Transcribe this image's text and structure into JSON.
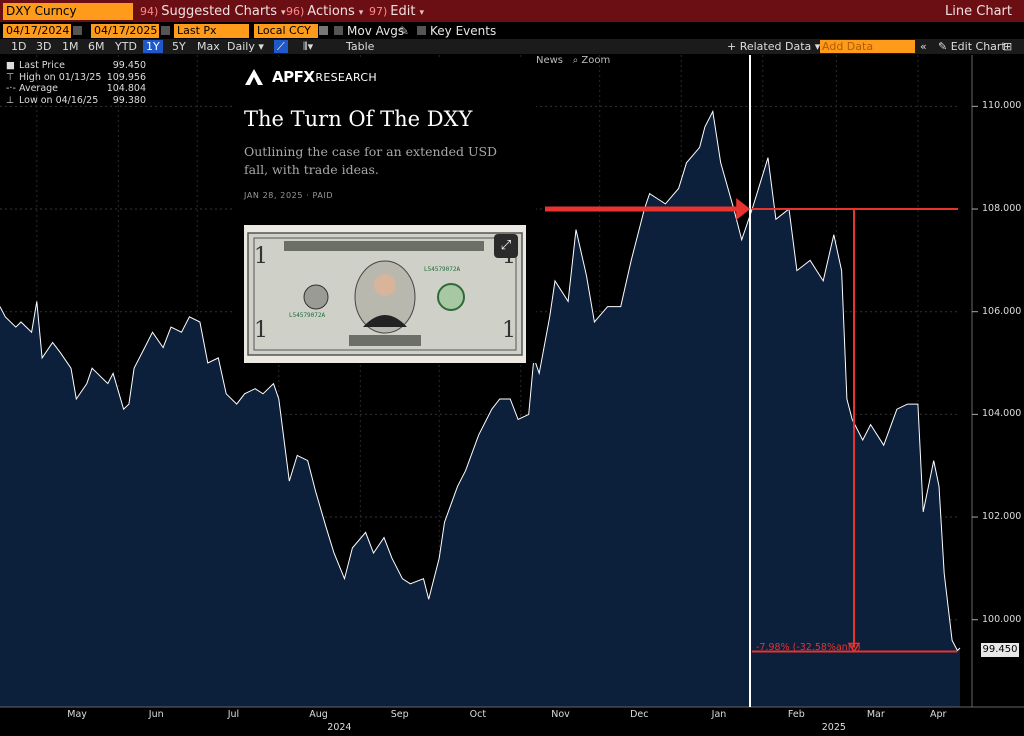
{
  "toolbar": {
    "ticker": "DXY Curncy",
    "menu": [
      {
        "num": "94)",
        "label": "Suggested Charts"
      },
      {
        "num": "96)",
        "label": "Actions"
      },
      {
        "num": "97)",
        "label": "Edit"
      }
    ],
    "title": "Line Chart"
  },
  "settings": {
    "date_from": "04/17/2024",
    "date_to": "04/17/2025",
    "field": "Last Px",
    "currency": "Local CCY",
    "mov_avgs": "Mov Avgs",
    "key_events": "Key Events"
  },
  "ranges": [
    "1D",
    "3D",
    "1M",
    "6M",
    "YTD",
    "1Y",
    "5Y",
    "Max"
  ],
  "selected_range": "1Y",
  "period": "Daily",
  "table_label": "Table",
  "related_data": "+ Related Data",
  "add_data": "Add Data",
  "edit_chart": "Edit Chart",
  "legend": [
    {
      "label": "Last Price",
      "value": "99.450"
    },
    {
      "label": "High on 01/13/25",
      "value": "109.956"
    },
    {
      "label": "Average",
      "value": "104.804"
    },
    {
      "label": "Low on 04/16/25",
      "value": "99.380"
    }
  ],
  "article": {
    "logo": "APFX",
    "logo_sub": "RESEARCH",
    "title": "The Turn Of The DXY",
    "subtitle": "Outlining the case for an extended USD fall, with trade ideas.",
    "meta": "JAN 28, 2025 · PAID"
  },
  "news_label": "News",
  "zoom_label": "Zoom",
  "annotation": "-7.98% (-32.58%ann.)",
  "colors": {
    "line": "#ffffff",
    "fill": "#0c1f3b",
    "annotation": "#e8332e",
    "accent": "#ff9b1a",
    "menubar": "#6b0f14"
  },
  "chart_data": {
    "type": "area",
    "title": "",
    "xlabel": "",
    "ylabel": "",
    "ylim": [
      98.3,
      111.0
    ],
    "yticks": [
      "100.000",
      "102.000",
      "104.000",
      "106.000",
      "108.000",
      "110.000"
    ],
    "month_labels": [
      "May",
      "Jun",
      "Jul",
      "Aug",
      "Sep",
      "Oct",
      "Nov",
      "Dec",
      "Jan",
      "Feb",
      "Mar",
      "Apr"
    ],
    "year_labels": [
      "2024",
      "2025"
    ],
    "last_value": "99.450",
    "x": [
      "2024-04-17",
      "2024-04-19",
      "2024-04-23",
      "2024-04-25",
      "2024-04-29",
      "2024-05-01",
      "2024-05-03",
      "2024-05-07",
      "2024-05-10",
      "2024-05-14",
      "2024-05-16",
      "2024-05-20",
      "2024-05-22",
      "2024-05-24",
      "2024-05-28",
      "2024-05-30",
      "2024-06-03",
      "2024-06-05",
      "2024-06-07",
      "2024-06-11",
      "2024-06-14",
      "2024-06-18",
      "2024-06-21",
      "2024-06-25",
      "2024-06-28",
      "2024-07-02",
      "2024-07-05",
      "2024-07-09",
      "2024-07-12",
      "2024-07-16",
      "2024-07-19",
      "2024-07-23",
      "2024-07-26",
      "2024-07-30",
      "2024-08-01",
      "2024-08-05",
      "2024-08-08",
      "2024-08-12",
      "2024-08-15",
      "2024-08-19",
      "2024-08-22",
      "2024-08-26",
      "2024-08-29",
      "2024-09-03",
      "2024-09-06",
      "2024-09-10",
      "2024-09-13",
      "2024-09-17",
      "2024-09-20",
      "2024-09-25",
      "2024-09-27",
      "2024-10-01",
      "2024-10-03",
      "2024-10-08",
      "2024-10-11",
      "2024-10-16",
      "2024-10-21",
      "2024-10-24",
      "2024-10-28",
      "2024-10-31",
      "2024-11-04",
      "2024-11-06",
      "2024-11-08",
      "2024-11-12",
      "2024-11-14",
      "2024-11-19",
      "2024-11-22",
      "2024-11-26",
      "2024-11-29",
      "2024-12-04",
      "2024-12-09",
      "2024-12-13",
      "2024-12-18",
      "2024-12-20",
      "2024-12-26",
      "2024-12-31",
      "2025-01-03",
      "2025-01-08",
      "2025-01-10",
      "2025-01-13",
      "2025-01-16",
      "2025-01-21",
      "2025-01-24",
      "2025-01-28",
      "2025-01-31",
      "2025-02-03",
      "2025-02-06",
      "2025-02-11",
      "2025-02-14",
      "2025-02-19",
      "2025-02-24",
      "2025-02-28",
      "2025-03-03",
      "2025-03-05",
      "2025-03-07",
      "2025-03-11",
      "2025-03-14",
      "2025-03-19",
      "2025-03-24",
      "2025-03-28",
      "2025-04-01",
      "2025-04-03",
      "2025-04-07",
      "2025-04-09",
      "2025-04-11",
      "2025-04-14",
      "2025-04-16",
      "2025-04-17"
    ],
    "values": [
      106.1,
      105.9,
      105.7,
      105.8,
      105.6,
      106.2,
      105.1,
      105.4,
      105.2,
      104.9,
      104.3,
      104.6,
      104.9,
      104.8,
      104.6,
      104.8,
      104.1,
      104.2,
      104.9,
      105.3,
      105.6,
      105.3,
      105.7,
      105.6,
      105.9,
      105.8,
      105.0,
      105.1,
      104.4,
      104.2,
      104.4,
      104.5,
      104.4,
      104.6,
      104.3,
      102.7,
      103.2,
      103.1,
      102.5,
      101.8,
      101.3,
      100.8,
      101.4,
      101.7,
      101.3,
      101.6,
      101.2,
      100.8,
      100.7,
      100.8,
      100.4,
      101.2,
      101.9,
      102.6,
      102.9,
      103.6,
      104.1,
      104.3,
      104.3,
      103.9,
      104.0,
      105.1,
      104.8,
      105.9,
      106.6,
      106.2,
      107.6,
      106.7,
      105.8,
      106.1,
      106.1,
      107.0,
      108.0,
      108.3,
      108.1,
      108.4,
      108.9,
      109.2,
      109.6,
      109.9,
      108.9,
      108.0,
      107.4,
      108.0,
      108.5,
      109.0,
      107.8,
      108.0,
      106.8,
      107.0,
      106.6,
      107.5,
      106.8,
      104.3,
      103.9,
      103.5,
      103.8,
      103.4,
      104.1,
      104.2,
      104.2,
      102.1,
      103.1,
      102.6,
      100.9,
      99.6,
      99.4,
      99.45
    ],
    "annotation_from": {
      "x": "2025-01-28",
      "y": 108.0
    },
    "annotation_to": {
      "x": "2025-04-16",
      "y": 99.38
    }
  }
}
